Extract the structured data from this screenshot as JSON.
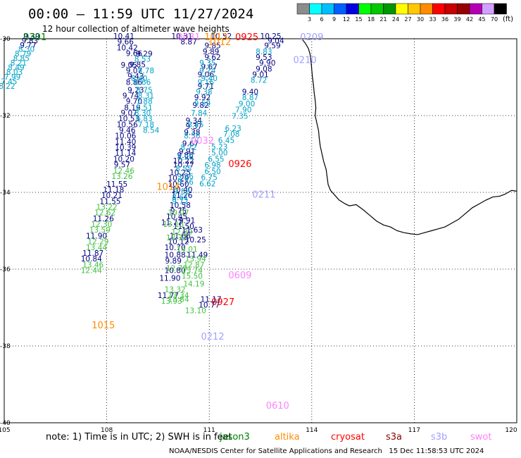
{
  "title": "00:00 – 11:59 UTC 11/27/2024",
  "subtitle": "12 hour collection of altimeter wave heights",
  "colorbar": {
    "unit": "(ft)",
    "ticks": [
      "3",
      "6",
      "9",
      "12",
      "15",
      "18",
      "21",
      "24",
      "27",
      "30",
      "33",
      "36",
      "39",
      "42",
      "45",
      "70"
    ],
    "colors": [
      "#8c8c8c",
      "#00ffff",
      "#00bfff",
      "#0060ff",
      "#0000e0",
      "#00ff00",
      "#00c800",
      "#009600",
      "#ffff00",
      "#ffc800",
      "#ff8c00",
      "#ff0000",
      "#c80000",
      "#960000",
      "#b400b4",
      "#d2a0ff",
      "#000000"
    ]
  },
  "axes": {
    "x_ticks": [
      "105",
      "108",
      "111",
      "114",
      "117",
      "120"
    ],
    "y_ticks": [
      "-30",
      "-32",
      "-34",
      "-36",
      "-38",
      "-40"
    ]
  },
  "colors": {
    "navy": "#000080",
    "cyan": "#00a0c8",
    "green": "#40c040",
    "jason3": "#008000",
    "altika": "#ff8c00",
    "cryosat": "#ff0000",
    "s3a": "#8b0000",
    "s3b": "#a0a0ff",
    "swot": "#ff80ff"
  },
  "legend": {
    "note": "note: 1) Time is in UTC; 2) SWH is in feet",
    "items": [
      {
        "key": "jason3",
        "label": "jason3"
      },
      {
        "key": "altika",
        "label": "altika"
      },
      {
        "key": "cryosat",
        "label": "cryosat"
      },
      {
        "key": "s3a",
        "label": "s3a"
      },
      {
        "key": "s3b",
        "label": "s3b"
      },
      {
        "key": "swot",
        "label": "swot"
      }
    ]
  },
  "footer": "NOAA/NESDIS Center for Satellite Applications and Research   15 Dec 11:58:53 UTC 2024",
  "time_labels": [
    {
      "t": "0301",
      "c": "jason3",
      "lon": 105.9,
      "lat": -30.0
    },
    {
      "t": "0031",
      "c": "swot",
      "lon": 110.4,
      "lat": -30.0
    },
    {
      "t": "1013",
      "c": "altika",
      "lon": 111.2,
      "lat": -30.0
    },
    {
      "t": "1012",
      "c": "altika",
      "lon": 111.3,
      "lat": -30.13
    },
    {
      "t": "0925",
      "c": "cryosat",
      "lon": 112.1,
      "lat": -30.0
    },
    {
      "t": "0209",
      "c": "s3b",
      "lon": 114.0,
      "lat": -30.0
    },
    {
      "t": "0210",
      "c": "s3b",
      "lon": 113.8,
      "lat": -30.6
    },
    {
      "t": "0032",
      "c": "swot",
      "lon": 110.8,
      "lat": -32.7
    },
    {
      "t": "0926",
      "c": "cryosat",
      "lon": 111.9,
      "lat": -33.3
    },
    {
      "t": "1014",
      "c": "altika",
      "lon": 109.8,
      "lat": -33.9
    },
    {
      "t": "0211",
      "c": "s3b",
      "lon": 112.6,
      "lat": -34.1
    },
    {
      "t": "0609",
      "c": "swot",
      "lon": 111.9,
      "lat": -36.2
    },
    {
      "t": "0927",
      "c": "cryosat",
      "lon": 111.4,
      "lat": -36.9
    },
    {
      "t": "1015",
      "c": "altika",
      "lon": 107.9,
      "lat": -37.5
    },
    {
      "t": "0212",
      "c": "s3b",
      "lon": 111.1,
      "lat": -37.8
    },
    {
      "t": "0610",
      "c": "swot",
      "lon": 113.0,
      "lat": -39.6
    }
  ],
  "tracks": [
    {
      "c": "navy",
      "pts": [
        [
          105.8,
          -30.0,
          "9.39"
        ],
        [
          105.75,
          -30.12,
          "9.83"
        ],
        [
          105.7,
          -30.24,
          "9.77"
        ]
      ]
    },
    {
      "c": "cyan",
      "pts": [
        [
          105.65,
          -30.34,
          "8.30"
        ],
        [
          105.55,
          -30.46,
          "8.79"
        ],
        [
          105.5,
          -30.58,
          "8.85"
        ],
        [
          105.42,
          -30.7,
          "8.21"
        ],
        [
          105.35,
          -30.82,
          "8.49"
        ],
        [
          105.3,
          -30.94,
          "8.03"
        ],
        [
          105.24,
          -31.06,
          "7.99"
        ],
        [
          105.14,
          -31.18,
          "7.45"
        ],
        [
          105.08,
          -31.3,
          "8.22"
        ]
      ]
    },
    {
      "c": "navy",
      "pts": [
        [
          108.5,
          -30.0,
          "10.41"
        ],
        [
          108.55,
          -30.15,
          "9.66"
        ],
        [
          108.6,
          -30.3,
          "10.42"
        ],
        [
          108.8,
          -30.45,
          "9.66"
        ],
        [
          109.1,
          -30.46,
          "9.29"
        ],
        [
          108.65,
          -30.75,
          "9.05"
        ],
        [
          108.9,
          -30.74,
          "9.85"
        ],
        [
          108.8,
          -30.9,
          "9.07"
        ],
        [
          108.85,
          -31.05,
          "9.43"
        ],
        [
          108.8,
          -31.2,
          "8.86"
        ],
        [
          108.85,
          -31.4,
          "9.23"
        ],
        [
          108.7,
          -31.55,
          "9.74"
        ],
        [
          108.8,
          -31.7,
          "9.70"
        ],
        [
          108.75,
          -31.86,
          "8.19"
        ],
        [
          108.65,
          -32.0,
          "9.07"
        ],
        [
          108.65,
          -32.15,
          "10.53"
        ],
        [
          108.6,
          -32.3,
          "10.56"
        ],
        [
          108.6,
          -32.45,
          "9.46"
        ],
        [
          108.55,
          -32.6,
          "10.06"
        ],
        [
          108.55,
          -32.75,
          "11.40"
        ],
        [
          108.55,
          -32.9,
          "10.39"
        ],
        [
          108.55,
          -33.05,
          "11.14"
        ],
        [
          108.5,
          -33.2,
          "10.20"
        ],
        [
          108.45,
          -33.35,
          "9.57"
        ]
      ]
    },
    {
      "c": "cyan",
      "pts": [
        [
          109.05,
          -30.6,
          "8.53"
        ],
        [
          109.15,
          -30.9,
          "8.78"
        ],
        [
          108.95,
          -31.1,
          "8.40"
        ],
        [
          109.05,
          -31.2,
          "8.66"
        ],
        [
          109.1,
          -31.4,
          "8.75"
        ],
        [
          109.15,
          -31.55,
          "8.31"
        ],
        [
          109.1,
          -31.7,
          "7.88"
        ],
        [
          109.1,
          -31.86,
          "8.51"
        ],
        [
          109.05,
          -32.0,
          "8.30"
        ],
        [
          109.1,
          -32.15,
          "6.83"
        ],
        [
          109.15,
          -32.3,
          "7.18"
        ],
        [
          109.3,
          -32.45,
          "8.54"
        ]
      ]
    },
    {
      "c": "green",
      "pts": [
        [
          108.5,
          -33.5,
          "12.46"
        ],
        [
          108.45,
          -33.65,
          "13.26"
        ]
      ]
    },
    {
      "c": "navy",
      "pts": [
        [
          108.3,
          -33.85,
          "11.55"
        ],
        [
          108.2,
          -34.0,
          "11.18"
        ],
        [
          108.15,
          -34.15,
          "10.21"
        ],
        [
          108.1,
          -34.3,
          "11.55"
        ]
      ]
    },
    {
      "c": "green",
      "pts": [
        [
          108.0,
          -34.45,
          "13.22"
        ],
        [
          107.95,
          -34.6,
          "12.62"
        ]
      ]
    },
    {
      "c": "navy",
      "pts": [
        [
          107.9,
          -34.75,
          "11.26"
        ]
      ]
    },
    {
      "c": "green",
      "pts": [
        [
          107.85,
          -34.9,
          "12.30"
        ],
        [
          107.8,
          -35.05,
          "13.59"
        ],
        [
          107.75,
          -35.35,
          "12.29"
        ],
        [
          107.7,
          -35.5,
          "13.44"
        ],
        [
          107.6,
          -35.95,
          "13.46"
        ],
        [
          107.55,
          -36.1,
          "12.44"
        ]
      ]
    },
    {
      "c": "navy",
      "pts": [
        [
          107.7,
          -35.2,
          "11.90"
        ],
        [
          107.6,
          -35.65,
          "11.87"
        ],
        [
          107.55,
          -35.8,
          "10.84"
        ]
      ]
    },
    {
      "c": "navy",
      "pts": [
        [
          112.8,
          -30.0,
          "10.25"
        ],
        [
          112.95,
          -30.12,
          "9.04"
        ],
        [
          112.85,
          -30.25,
          "9.59"
        ],
        [
          112.6,
          -30.55,
          "9.53"
        ],
        [
          112.7,
          -30.7,
          "9.90"
        ],
        [
          112.6,
          -30.85,
          "9.08"
        ],
        [
          112.5,
          -31.0,
          "9.01"
        ],
        [
          112.2,
          -31.45,
          "9.40"
        ]
      ]
    },
    {
      "c": "cyan",
      "pts": [
        [
          112.6,
          -30.4,
          "8.83"
        ],
        [
          112.45,
          -31.15,
          "8.72"
        ],
        [
          112.2,
          -31.6,
          "8.87"
        ],
        [
          112.1,
          -31.76,
          "9.00"
        ],
        [
          112.0,
          -31.92,
          "7.90"
        ],
        [
          111.9,
          -32.08,
          "7.35"
        ],
        [
          111.7,
          -32.4,
          "6.23"
        ],
        [
          111.65,
          -32.55,
          "7.08"
        ],
        [
          111.5,
          -32.72,
          "6.45"
        ],
        [
          111.3,
          -32.88,
          "5.23"
        ],
        [
          111.3,
          -33.04,
          "5.00"
        ],
        [
          111.2,
          -33.2,
          "6.55"
        ],
        [
          111.1,
          -33.36,
          "6.98"
        ],
        [
          111.1,
          -33.52,
          "6.50"
        ],
        [
          111.0,
          -33.68,
          "6.75"
        ],
        [
          110.95,
          -33.84,
          "6.62"
        ]
      ]
    },
    {
      "c": "navy",
      "pts": [
        [
          110.2,
          -30.0,
          "10.31"
        ],
        [
          111.35,
          -30.0,
          "10.52"
        ],
        [
          110.4,
          -30.15,
          "8.87"
        ],
        [
          111.1,
          -30.25,
          "9.85"
        ],
        [
          111.05,
          -30.4,
          "9.89"
        ],
        [
          111.1,
          -30.55,
          "9.62"
        ],
        [
          111.0,
          -30.8,
          "9.67"
        ],
        [
          110.9,
          -31.0,
          "9.06"
        ],
        [
          110.9,
          -31.3,
          "9.71"
        ],
        [
          110.8,
          -31.6,
          "9.92"
        ],
        [
          110.75,
          -31.8,
          "9.82"
        ],
        [
          110.55,
          -32.2,
          "9.34"
        ],
        [
          110.55,
          -32.35,
          "9.37"
        ],
        [
          110.5,
          -32.5,
          "9.38"
        ],
        [
          110.45,
          -32.8,
          "9.67"
        ],
        [
          110.35,
          -33.0,
          "9.91"
        ],
        [
          110.3,
          -33.1,
          "9.86"
        ],
        [
          110.25,
          -33.25,
          "10.22"
        ],
        [
          110.25,
          -33.35,
          "10.77"
        ],
        [
          110.15,
          -33.55,
          "10.25"
        ],
        [
          110.1,
          -33.7,
          "10.29"
        ],
        [
          110.1,
          -33.85,
          "10.60"
        ],
        [
          110.2,
          -34.0,
          "10.40"
        ],
        [
          110.2,
          -34.15,
          "11.26"
        ],
        [
          110.15,
          -34.4,
          "10.58"
        ],
        [
          110.1,
          -34.55,
          "9.75"
        ],
        [
          110.05,
          -34.7,
          "10.45"
        ],
        [
          109.9,
          -34.85,
          "11.77"
        ],
        [
          110.25,
          -34.95,
          "11.50"
        ],
        [
          110.15,
          -35.2,
          "11.66"
        ],
        [
          110.1,
          -35.35,
          "10.12"
        ],
        [
          110.0,
          -35.5,
          "10.70"
        ],
        [
          110.0,
          -35.7,
          "10.88"
        ],
        [
          109.95,
          -35.85,
          "9.89"
        ],
        [
          110.0,
          -36.1,
          "10.80"
        ],
        [
          109.85,
          -36.3,
          "11.90"
        ],
        [
          109.8,
          -36.75,
          "11.77"
        ]
      ]
    },
    {
      "c": "cyan",
      "pts": [
        [
          110.95,
          -30.7,
          "9.35"
        ],
        [
          110.95,
          -30.9,
          "9.74"
        ],
        [
          111.0,
          -31.1,
          "9.40"
        ],
        [
          110.9,
          -31.2,
          "9.16"
        ],
        [
          110.85,
          -31.45,
          "9.38"
        ],
        [
          110.8,
          -31.75,
          "9.59"
        ],
        [
          110.7,
          -32.0,
          "7.84"
        ],
        [
          110.6,
          -32.3,
          "8.45"
        ],
        [
          110.5,
          -32.6,
          "8.56"
        ],
        [
          110.4,
          -32.9,
          "8.72"
        ],
        [
          110.3,
          -33.15,
          "8.28"
        ],
        [
          110.25,
          -33.45,
          "8.55"
        ],
        [
          110.3,
          -33.65,
          "9.26"
        ],
        [
          110.3,
          -33.8,
          "8.76"
        ],
        [
          110.2,
          -34.05,
          "9.58"
        ],
        [
          110.15,
          -34.2,
          "8.61"
        ],
        [
          110.15,
          -34.3,
          "9.72"
        ]
      ]
    },
    {
      "c": "green",
      "pts": [
        [
          110.1,
          -34.6,
          "10.07"
        ],
        [
          109.95,
          -34.9,
          "13.13"
        ],
        [
          110.2,
          -35.1,
          "12.39"
        ],
        [
          110.05,
          -35.25,
          "12.32"
        ],
        [
          110.05,
          -36.05,
          "12.79"
        ],
        [
          110.0,
          -36.6,
          "13.32"
        ],
        [
          109.9,
          -36.9,
          "13.93"
        ],
        [
          110.1,
          -36.75,
          "13.34"
        ],
        [
          110.1,
          -36.85,
          "13.84"
        ]
      ]
    },
    {
      "c": "navy",
      "pts": [
        [
          110.35,
          -34.8,
          "9.91"
        ],
        [
          110.5,
          -35.05,
          "11.63"
        ],
        [
          110.6,
          -35.3,
          "10.25"
        ],
        [
          110.65,
          -35.7,
          "11.49"
        ],
        [
          111.05,
          -36.85,
          "11.17"
        ],
        [
          111.0,
          -37.0,
          "10.77"
        ]
      ]
    },
    {
      "c": "green",
      "pts": [
        [
          110.6,
          -35.8,
          "13.94"
        ],
        [
          110.55,
          -35.95,
          "12.87"
        ],
        [
          110.5,
          -36.1,
          "13.74"
        ],
        [
          110.5,
          -36.25,
          "15.50"
        ],
        [
          110.55,
          -36.45,
          "14.19"
        ],
        [
          110.6,
          -37.15,
          "13.10"
        ],
        [
          110.35,
          -35.55,
          "14.01"
        ]
      ]
    }
  ],
  "coast": [
    [
      113.7,
      -30.0
    ],
    [
      113.8,
      -30.1
    ],
    [
      113.9,
      -30.25
    ],
    [
      113.95,
      -30.4
    ],
    [
      113.98,
      -30.6
    ],
    [
      114.0,
      -30.8
    ],
    [
      114.02,
      -31.0
    ],
    [
      114.05,
      -31.2
    ],
    [
      114.07,
      -31.4
    ],
    [
      114.1,
      -31.6
    ],
    [
      114.12,
      -31.8
    ],
    [
      114.1,
      -32.0
    ],
    [
      114.15,
      -32.2
    ],
    [
      114.2,
      -32.4
    ],
    [
      114.22,
      -32.6
    ],
    [
      114.25,
      -32.8
    ],
    [
      114.3,
      -33.0
    ],
    [
      114.35,
      -33.2
    ],
    [
      114.42,
      -33.4
    ],
    [
      114.45,
      -33.6
    ],
    [
      114.48,
      -33.8
    ],
    [
      114.55,
      -33.95
    ],
    [
      114.7,
      -34.1
    ],
    [
      114.8,
      -34.2
    ],
    [
      114.98,
      -34.3
    ],
    [
      115.1,
      -34.35
    ],
    [
      115.3,
      -34.32
    ],
    [
      115.5,
      -34.45
    ],
    [
      115.7,
      -34.6
    ],
    [
      115.9,
      -34.75
    ],
    [
      116.1,
      -34.85
    ],
    [
      116.3,
      -34.9
    ],
    [
      116.5,
      -35.0
    ],
    [
      116.7,
      -35.05
    ],
    [
      116.9,
      -35.08
    ],
    [
      117.1,
      -35.1
    ],
    [
      117.3,
      -35.05
    ],
    [
      117.5,
      -35.0
    ],
    [
      117.7,
      -34.95
    ],
    [
      117.9,
      -34.9
    ],
    [
      118.1,
      -34.8
    ],
    [
      118.3,
      -34.7
    ],
    [
      118.5,
      -34.55
    ],
    [
      118.7,
      -34.4
    ],
    [
      118.9,
      -34.3
    ],
    [
      119.1,
      -34.2
    ],
    [
      119.3,
      -34.12
    ],
    [
      119.5,
      -34.1
    ],
    [
      119.65,
      -34.05
    ],
    [
      119.75,
      -34.0
    ],
    [
      119.85,
      -33.95
    ],
    [
      120.0,
      -33.97
    ]
  ]
}
